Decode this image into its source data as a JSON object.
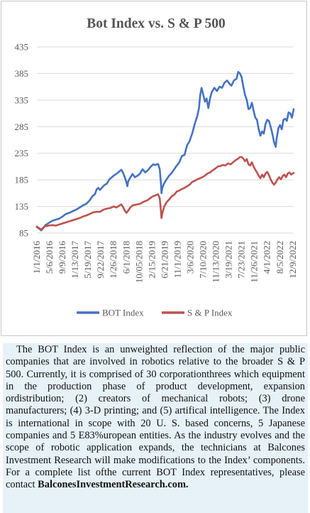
{
  "chart_data": {
    "type": "line",
    "title": "Bot Index vs. S & P 500",
    "xlabel": "",
    "ylabel": "",
    "ylim": [
      85,
      435
    ],
    "yticks": [
      85,
      135,
      185,
      235,
      285,
      335,
      385,
      435
    ],
    "x_tick_labels": [
      "1/1/2016",
      "5/6/2016",
      "9/9/2016",
      "1/13/2017",
      "5/19/2017",
      "9/22/2017",
      "1/26/2018",
      "6/1/2018",
      "10/05/2018",
      "2/15/2019",
      "6/21/2019",
      "11/1/2019",
      "3/6/2020",
      "7/10/2020",
      "11/13/2020",
      "3/19/2021",
      "7/23/2021",
      "11/26/2021",
      "4/1/2022",
      "8/5/2022",
      "12/9/2022"
    ],
    "grid": "horizontal",
    "legend": "bottom",
    "series": [
      {
        "name": "BOT Index",
        "color": "#4472c4",
        "points": [
          [
            0,
            96
          ],
          [
            0.3,
            93
          ],
          [
            0.5,
            90
          ],
          [
            0.8,
            95
          ],
          [
            1.0,
            100
          ],
          [
            1.4,
            104
          ],
          [
            1.8,
            108
          ],
          [
            2.2,
            110
          ],
          [
            2.6,
            112
          ],
          [
            3.0,
            116
          ],
          [
            3.4,
            121
          ],
          [
            3.8,
            123
          ],
          [
            4.2,
            126
          ],
          [
            4.6,
            129
          ],
          [
            5.0,
            133
          ],
          [
            5.4,
            137
          ],
          [
            5.8,
            140
          ],
          [
            6.2,
            147
          ],
          [
            6.5,
            154
          ],
          [
            6.8,
            158
          ],
          [
            7.0,
            167
          ],
          [
            7.2,
            170
          ],
          [
            7.4,
            166
          ],
          [
            7.6,
            170
          ],
          [
            7.9,
            175
          ],
          [
            8.2,
            178
          ],
          [
            8.5,
            186
          ],
          [
            8.8,
            190
          ],
          [
            9.0,
            193
          ],
          [
            9.3,
            196
          ],
          [
            9.6,
            200
          ],
          [
            9.9,
            204
          ],
          [
            10.1,
            198
          ],
          [
            10.3,
            190
          ],
          [
            10.5,
            180
          ],
          [
            10.6,
            173
          ],
          [
            10.7,
            182
          ],
          [
            10.9,
            188
          ],
          [
            11.2,
            196
          ],
          [
            11.5,
            190
          ],
          [
            11.8,
            193
          ],
          [
            12.1,
            197
          ],
          [
            12.4,
            205
          ],
          [
            12.7,
            199
          ],
          [
            13.0,
            203
          ],
          [
            13.3,
            209
          ],
          [
            13.6,
            214
          ],
          [
            13.9,
            213
          ],
          [
            14.2,
            215
          ],
          [
            14.4,
            205
          ],
          [
            14.55,
            176
          ],
          [
            14.6,
            160
          ],
          [
            14.7,
            170
          ],
          [
            14.9,
            178
          ],
          [
            15.2,
            186
          ],
          [
            15.5,
            193
          ],
          [
            15.8,
            198
          ],
          [
            16.1,
            205
          ],
          [
            16.4,
            212
          ],
          [
            16.7,
            218
          ],
          [
            17.0,
            230
          ],
          [
            17.3,
            232
          ],
          [
            17.6,
            250
          ],
          [
            17.9,
            258
          ],
          [
            18.2,
            272
          ],
          [
            18.5,
            290
          ],
          [
            18.8,
            305
          ],
          [
            19.0,
            320
          ],
          [
            19.15,
            345
          ],
          [
            19.3,
            358
          ],
          [
            19.5,
            345
          ],
          [
            19.7,
            332
          ],
          [
            19.9,
            338
          ],
          [
            20.1,
            320
          ],
          [
            20.3,
            338
          ],
          [
            20.5,
            350
          ],
          [
            20.8,
            358
          ],
          [
            21.1,
            352
          ],
          [
            21.4,
            360
          ],
          [
            21.7,
            358
          ],
          [
            22.0,
            368
          ],
          [
            22.3,
            372
          ],
          [
            22.6,
            365
          ],
          [
            22.8,
            362
          ],
          [
            23.1,
            372
          ],
          [
            23.4,
            375
          ],
          [
            23.6,
            388
          ],
          [
            23.8,
            385
          ],
          [
            24.0,
            378
          ],
          [
            24.2,
            360
          ],
          [
            24.4,
            345
          ],
          [
            24.6,
            335
          ],
          [
            24.8,
            318
          ],
          [
            25.0,
            320
          ],
          [
            25.2,
            330
          ],
          [
            25.4,
            315
          ],
          [
            25.6,
            302
          ],
          [
            25.8,
            298
          ],
          [
            26.0,
            280
          ],
          [
            26.2,
            268
          ],
          [
            26.4,
            276
          ],
          [
            26.6,
            272
          ],
          [
            26.8,
            290
          ],
          [
            27.0,
            298
          ],
          [
            27.2,
            296
          ],
          [
            27.4,
            285
          ],
          [
            27.6,
            272
          ],
          [
            27.8,
            256
          ],
          [
            28.0,
            247
          ],
          [
            28.1,
            262
          ],
          [
            28.3,
            282
          ],
          [
            28.5,
            288
          ],
          [
            28.7,
            280
          ],
          [
            28.9,
            298
          ],
          [
            29.1,
            300
          ],
          [
            29.3,
            296
          ],
          [
            29.5,
            312
          ],
          [
            29.7,
            310
          ],
          [
            29.9,
            302
          ],
          [
            30.1,
            318
          ]
        ]
      },
      {
        "name": "S & P Index",
        "color": "#c0504d",
        "points": [
          [
            0,
            97
          ],
          [
            0.3,
            94
          ],
          [
            0.5,
            91
          ],
          [
            0.8,
            96
          ],
          [
            1.0,
            98
          ],
          [
            1.4,
            99
          ],
          [
            1.8,
            100
          ],
          [
            2.2,
            99
          ],
          [
            2.6,
            101
          ],
          [
            3.0,
            103
          ],
          [
            3.4,
            105
          ],
          [
            3.8,
            107
          ],
          [
            4.2,
            109
          ],
          [
            4.6,
            111
          ],
          [
            5.0,
            113
          ],
          [
            5.4,
            116
          ],
          [
            5.8,
            118
          ],
          [
            6.2,
            121
          ],
          [
            6.6,
            124
          ],
          [
            7.0,
            125
          ],
          [
            7.4,
            125
          ],
          [
            7.8,
            129
          ],
          [
            8.2,
            131
          ],
          [
            8.6,
            132
          ],
          [
            9.0,
            135
          ],
          [
            9.3,
            133
          ],
          [
            9.6,
            136
          ],
          [
            9.9,
            139
          ],
          [
            10.1,
            134
          ],
          [
            10.3,
            127
          ],
          [
            10.5,
            123
          ],
          [
            10.7,
            127
          ],
          [
            10.9,
            132
          ],
          [
            11.2,
            137
          ],
          [
            11.5,
            138
          ],
          [
            11.8,
            139
          ],
          [
            12.1,
            140
          ],
          [
            12.4,
            143
          ],
          [
            12.7,
            145
          ],
          [
            13.0,
            147
          ],
          [
            13.3,
            151
          ],
          [
            13.6,
            154
          ],
          [
            13.9,
            156
          ],
          [
            14.2,
            158
          ],
          [
            14.4,
            150
          ],
          [
            14.55,
            125
          ],
          [
            14.6,
            113
          ],
          [
            14.7,
            122
          ],
          [
            14.9,
            134
          ],
          [
            15.2,
            143
          ],
          [
            15.5,
            148
          ],
          [
            15.8,
            154
          ],
          [
            16.1,
            157
          ],
          [
            16.4,
            163
          ],
          [
            16.7,
            165
          ],
          [
            17.0,
            168
          ],
          [
            17.3,
            170
          ],
          [
            17.6,
            173
          ],
          [
            17.9,
            176
          ],
          [
            18.2,
            181
          ],
          [
            18.5,
            183
          ],
          [
            18.8,
            186
          ],
          [
            19.1,
            188
          ],
          [
            19.4,
            190
          ],
          [
            19.7,
            193
          ],
          [
            20.0,
            197
          ],
          [
            20.3,
            199
          ],
          [
            20.6,
            203
          ],
          [
            20.9,
            206
          ],
          [
            21.2,
            210
          ],
          [
            21.5,
            211
          ],
          [
            21.8,
            213
          ],
          [
            22.1,
            212
          ],
          [
            22.4,
            216
          ],
          [
            22.7,
            214
          ],
          [
            23.0,
            218
          ],
          [
            23.3,
            222
          ],
          [
            23.6,
            225
          ],
          [
            23.8,
            228
          ],
          [
            24.0,
            228
          ],
          [
            24.2,
            225
          ],
          [
            24.4,
            220
          ],
          [
            24.6,
            224
          ],
          [
            24.8,
            214
          ],
          [
            25.0,
            212
          ],
          [
            25.2,
            218
          ],
          [
            25.4,
            210
          ],
          [
            25.6,
            204
          ],
          [
            25.8,
            199
          ],
          [
            26.0,
            193
          ],
          [
            26.2,
            188
          ],
          [
            26.4,
            195
          ],
          [
            26.6,
            190
          ],
          [
            26.8,
            197
          ],
          [
            27.0,
            200
          ],
          [
            27.2,
            194
          ],
          [
            27.4,
            186
          ],
          [
            27.6,
            180
          ],
          [
            27.8,
            176
          ],
          [
            28.0,
            180
          ],
          [
            28.2,
            186
          ],
          [
            28.4,
            190
          ],
          [
            28.6,
            186
          ],
          [
            28.8,
            192
          ],
          [
            29.0,
            195
          ],
          [
            29.2,
            190
          ],
          [
            29.4,
            197
          ],
          [
            29.6,
            199
          ],
          [
            29.8,
            195
          ],
          [
            30.1,
            198
          ]
        ]
      }
    ]
  },
  "description": {
    "p1": "The BOT Index is an unweighted reflection of the major public companies that are involved in robotics relative to the broader S & P 500. Currently, it is comprised of 30 corporationthrees which equipment in the production phase of product development, expansion ordistribution; (2) creators of mechanical robots; (3) drone manufacturers; (4) 3-D printing; and (5) artifical intelligence. The Index is international in scope with 20 U. S. based concerns, 5 Japanese companies and 5 E83%uropean entities. As the industry evolves and the scope of robotic application expands, the technicians at Balcones Investment Research will make modifications to the Index’ components. For a  complete list ofthe current    BOT    Index    representatives,    please    contact",
    "link": "BalconesInvestmentResearch.com."
  }
}
